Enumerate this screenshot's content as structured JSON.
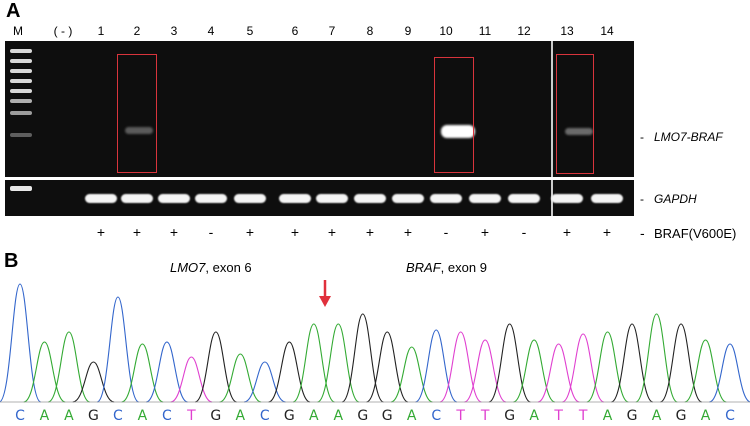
{
  "panel_a": {
    "label": "A",
    "marker_label": "M",
    "negative_label": "( - )",
    "lanes": [
      "1",
      "2",
      "3",
      "4",
      "5",
      "6",
      "7",
      "8",
      "9",
      "10",
      "11",
      "12",
      "13",
      "14"
    ],
    "fusion_label": "LMO7-BRAF",
    "control_label": "GAPDH",
    "mutation_label": "BRAF(V600E)",
    "mutation_status": [
      "+",
      "+",
      "+",
      "-",
      "+",
      "+",
      "+",
      "+",
      "+",
      "-",
      "+",
      "-",
      "+",
      "+"
    ],
    "dash": "-",
    "highlighted_lanes": [
      "2",
      "10",
      "13"
    ]
  },
  "panel_b": {
    "label": "B",
    "gene_left": "LMO7",
    "exon_left": ", exon 6",
    "gene_right": "BRAF",
    "exon_right": ", exon 9",
    "sequence": [
      "C",
      "A",
      "A",
      "G",
      "C",
      "A",
      "C",
      "T",
      "G",
      "A",
      "C",
      "G",
      "A",
      "A",
      "G",
      "G",
      "A",
      "C",
      "T",
      "T",
      "G",
      "A",
      "T",
      "T",
      "A",
      "G",
      "A",
      "G",
      "A",
      "C"
    ]
  },
  "colors": {
    "A": "#33aa33",
    "C": "#3366cc",
    "G": "#222222",
    "T": "#e040d0",
    "box": "#d8343c",
    "arrow": "#e0303c"
  }
}
